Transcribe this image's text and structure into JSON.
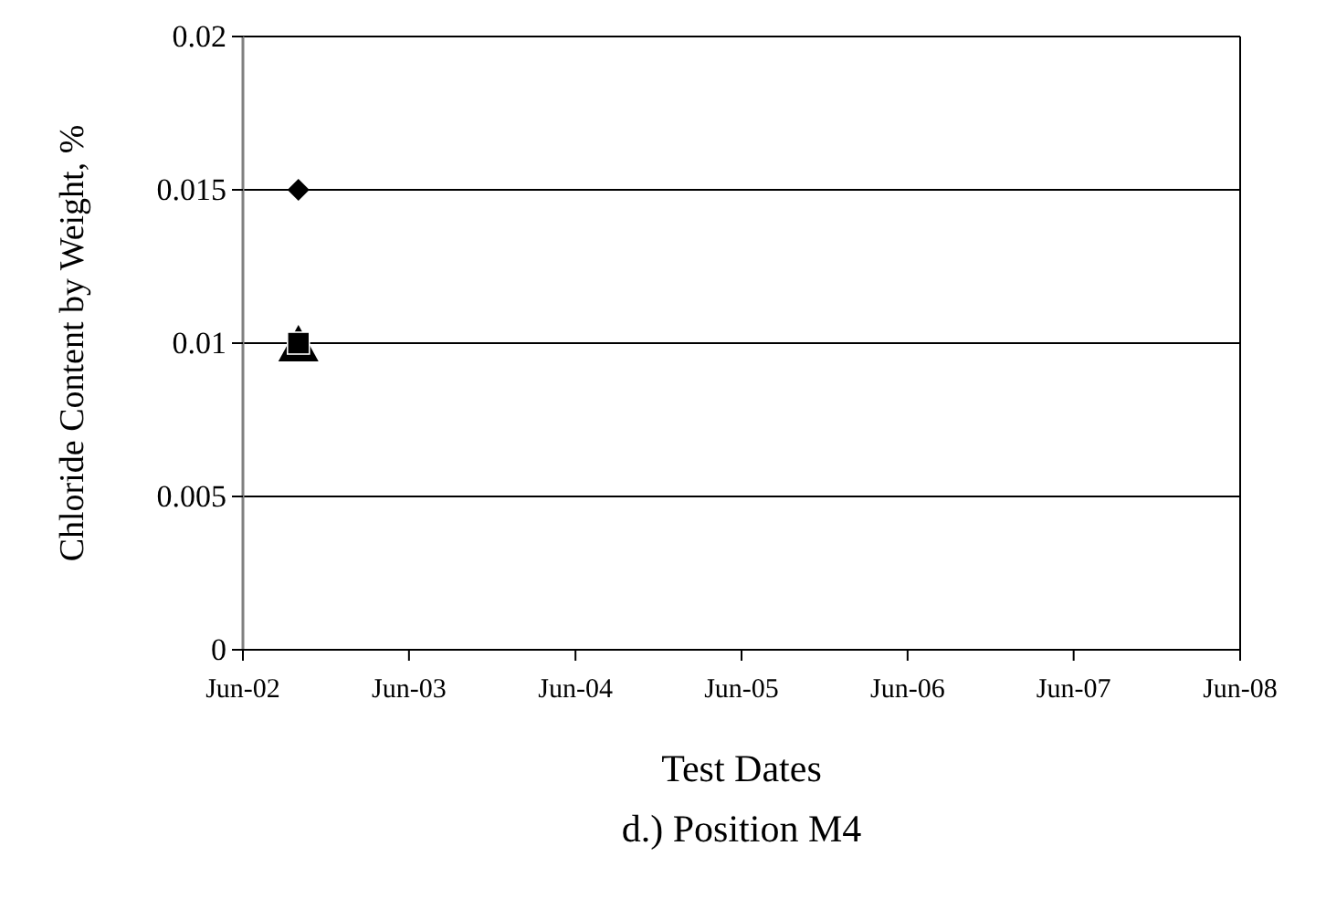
{
  "chart_data": {
    "type": "scatter",
    "title": "d.) Position M4",
    "xlabel": "Test Dates",
    "ylabel": "Chloride Content by Weight, %",
    "x": [
      "2002-10-01"
    ],
    "series": [
      {
        "color": "#000000",
        "marker": "diamond",
        "values": [
          0.015
        ]
      },
      {
        "color": "#000000",
        "marker": "triangle",
        "values": [
          0.01
        ]
      },
      {
        "color": "#000000",
        "marker": "square",
        "values": [
          0.01
        ]
      }
    ],
    "xlim": [
      "2002-06-01",
      "2008-06-01"
    ],
    "xticks": [
      {
        "value": "2002-06-01",
        "label": "Jun-02"
      },
      {
        "value": "2003-06-01",
        "label": "Jun-03"
      },
      {
        "value": "2004-06-01",
        "label": "Jun-04"
      },
      {
        "value": "2005-06-01",
        "label": "Jun-05"
      },
      {
        "value": "2006-06-01",
        "label": "Jun-06"
      },
      {
        "value": "2007-06-01",
        "label": "Jun-07"
      },
      {
        "value": "2008-06-01",
        "label": "Jun-08"
      }
    ],
    "ylim": [
      0,
      0.02
    ],
    "yticks": [
      0,
      0.005,
      0.01,
      0.015,
      0.02
    ],
    "grid": "y"
  }
}
